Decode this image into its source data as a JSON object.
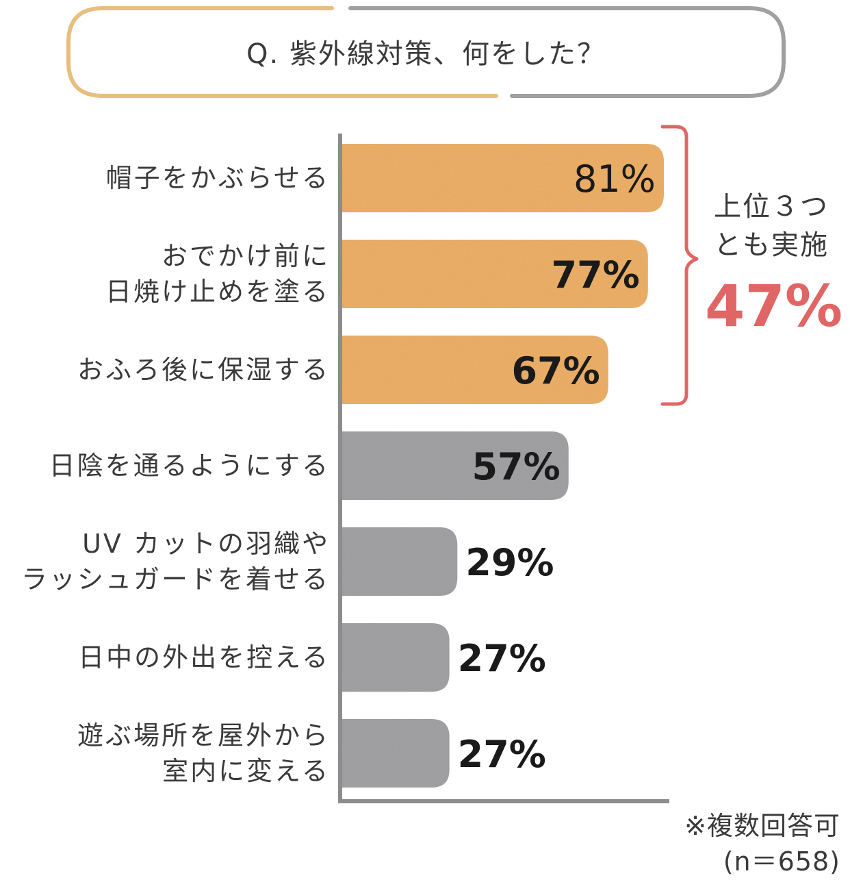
{
  "chart_data": {
    "type": "bar",
    "orientation": "horizontal",
    "title": "Q. 紫外線対策、何をした？",
    "categories": [
      [
        "帽子をかぶらせる"
      ],
      [
        "おでかけ前に",
        "日焼け止めを塗る"
      ],
      [
        "おふろ後に保湿する"
      ],
      [
        "日陰を通るようにする"
      ],
      [
        "UV カットの羽織や",
        "ラッシュガードを着せる"
      ],
      [
        "日中の外出を控える"
      ],
      [
        "遊ぶ場所を屋外から",
        "室内に変える"
      ]
    ],
    "values": [
      81,
      77,
      67,
      57,
      29,
      27,
      27
    ],
    "value_labels": [
      "81%",
      "77%",
      "67%",
      "57%",
      "29%",
      "27%",
      "27%"
    ],
    "highlight_count": 3,
    "xlim": [
      0,
      100
    ],
    "grid": false,
    "legend": "none",
    "annotation": {
      "label_lines": [
        "上位３つ",
        "とも実施"
      ],
      "value": "47%"
    },
    "note_lines": [
      "※複数回答可",
      "(n＝658)"
    ]
  },
  "colors": {
    "highlight_bar": "#F2B46B",
    "other_bar": "#A6A6A8",
    "bracket": "#E06666",
    "summary_value": "#E06666",
    "frame_left": "#E8BE80",
    "frame_right": "#A0A0A0",
    "axis": "#8C8C8C",
    "text": "#3A3A3A"
  }
}
